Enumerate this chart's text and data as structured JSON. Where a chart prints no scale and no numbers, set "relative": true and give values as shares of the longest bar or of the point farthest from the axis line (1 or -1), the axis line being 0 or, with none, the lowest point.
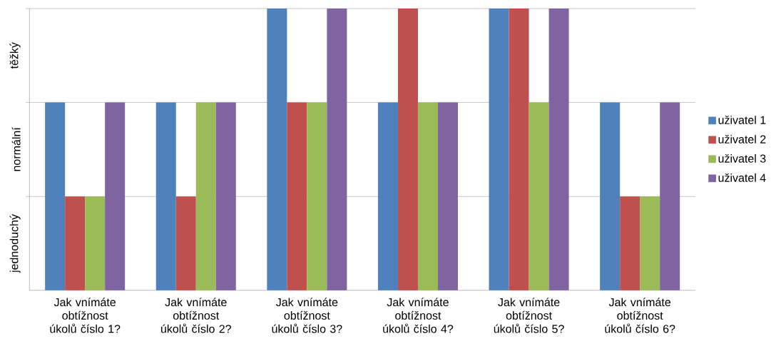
{
  "chart_data": {
    "type": "bar",
    "relative": true,
    "categories": [
      "Jak vnímáte obtížnost úkolů číslo 1?",
      "Jak vnímáte obtížnost úkolů číslo 2?",
      "Jak vnímáte obtížnost úkolů číslo 3?",
      "Jak vnímáte obtížnost úkolů číslo 4?",
      "Jak vnímáte obtížnost úkolů číslo 5?",
      "Jak vnímáte obtížnost úkolů číslo 6?"
    ],
    "series": [
      {
        "name": "uživatel 1",
        "color": "#4f81bd",
        "values": [
          0.667,
          0.667,
          1,
          0.667,
          1,
          0.667
        ]
      },
      {
        "name": "uživatel 2",
        "color": "#c0504d",
        "values": [
          0.333,
          0.333,
          0.667,
          1,
          1,
          0.333
        ]
      },
      {
        "name": "uživatel 3",
        "color": "#9bbb59",
        "values": [
          0.333,
          0.667,
          0.667,
          0.667,
          0.667,
          0.333
        ]
      },
      {
        "name": "uživatel 4",
        "color": "#8064a2",
        "values": [
          0.667,
          0.667,
          1,
          0.667,
          1,
          0.667
        ]
      }
    ],
    "annotations": [
      "jednoduchý",
      "normální",
      "těžký"
    ],
    "ref_lines": [
      {
        "axis": "y",
        "value": 0.333,
        "color": "#999999"
      },
      {
        "axis": "y",
        "value": 0.667,
        "color": "#999999"
      },
      {
        "axis": "y",
        "value": 1,
        "color": "#999999"
      }
    ],
    "legend": "right"
  }
}
